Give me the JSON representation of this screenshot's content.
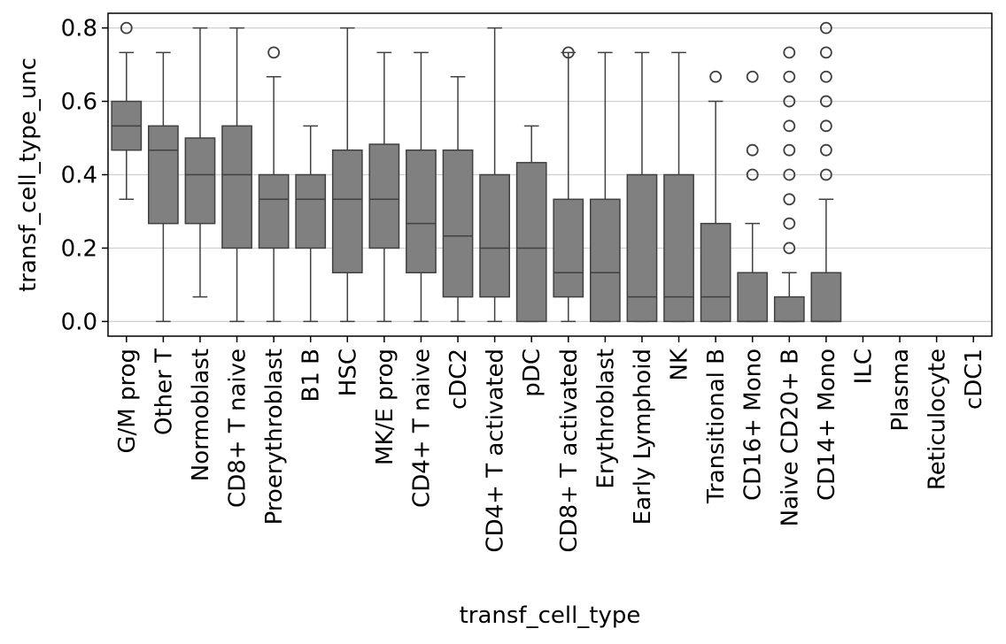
{
  "chart_data": {
    "type": "box",
    "xlabel": "transf_cell_type",
    "ylabel": "transf_cell_type_unc",
    "ylim": [
      -0.04,
      0.84
    ],
    "yticks": [
      0.0,
      0.2,
      0.4,
      0.6,
      0.8
    ],
    "ytick_labels": [
      "0.0",
      "0.2",
      "0.4",
      "0.6",
      "0.8"
    ],
    "grid": "horizontal",
    "box_color": "#808080",
    "line_color": "#404040",
    "categories": [
      "G/M prog",
      "Other T",
      "Normoblast",
      "CD8+ T naive",
      "Proerythroblast",
      "B1 B",
      "HSC",
      "MK/E prog",
      "CD4+ T naive",
      "cDC2",
      "CD4+ T activated",
      "pDC",
      "CD8+ T activated",
      "Erythroblast",
      "Early Lymphoid",
      "NK",
      "Transitional B",
      "CD16+ Mono",
      "Naive CD20+ B",
      "CD14+ Mono",
      "ILC",
      "Plasma",
      "Reticulocyte",
      "cDC1"
    ],
    "boxes": [
      {
        "whislo": 0.333,
        "q1": 0.467,
        "med": 0.533,
        "q3": 0.6,
        "whishi": 0.733,
        "fliers": [
          0.8
        ]
      },
      {
        "whislo": 0.0,
        "q1": 0.267,
        "med": 0.467,
        "q3": 0.533,
        "whishi": 0.733,
        "fliers": []
      },
      {
        "whislo": 0.067,
        "q1": 0.267,
        "med": 0.4,
        "q3": 0.5,
        "whishi": 0.8,
        "fliers": []
      },
      {
        "whislo": 0.0,
        "q1": 0.2,
        "med": 0.4,
        "q3": 0.533,
        "whishi": 0.8,
        "fliers": []
      },
      {
        "whislo": 0.0,
        "q1": 0.2,
        "med": 0.333,
        "q3": 0.4,
        "whishi": 0.667,
        "fliers": [
          0.733
        ]
      },
      {
        "whislo": 0.0,
        "q1": 0.2,
        "med": 0.333,
        "q3": 0.4,
        "whishi": 0.533,
        "fliers": []
      },
      {
        "whislo": 0.0,
        "q1": 0.133,
        "med": 0.333,
        "q3": 0.467,
        "whishi": 0.8,
        "fliers": []
      },
      {
        "whislo": 0.0,
        "q1": 0.2,
        "med": 0.333,
        "q3": 0.483,
        "whishi": 0.733,
        "fliers": []
      },
      {
        "whislo": 0.0,
        "q1": 0.133,
        "med": 0.267,
        "q3": 0.467,
        "whishi": 0.733,
        "fliers": []
      },
      {
        "whislo": 0.0,
        "q1": 0.067,
        "med": 0.233,
        "q3": 0.467,
        "whishi": 0.667,
        "fliers": []
      },
      {
        "whislo": 0.0,
        "q1": 0.067,
        "med": 0.2,
        "q3": 0.4,
        "whishi": 0.8,
        "fliers": []
      },
      {
        "whislo": 0.0,
        "q1": 0.0,
        "med": 0.2,
        "q3": 0.433,
        "whishi": 0.533,
        "fliers": []
      },
      {
        "whislo": 0.0,
        "q1": 0.067,
        "med": 0.133,
        "q3": 0.333,
        "whishi": 0.733,
        "fliers": [
          0.733
        ]
      },
      {
        "whislo": 0.0,
        "q1": 0.0,
        "med": 0.133,
        "q3": 0.333,
        "whishi": 0.733,
        "fliers": []
      },
      {
        "whislo": 0.0,
        "q1": 0.0,
        "med": 0.067,
        "q3": 0.4,
        "whishi": 0.733,
        "fliers": []
      },
      {
        "whislo": 0.0,
        "q1": 0.0,
        "med": 0.067,
        "q3": 0.4,
        "whishi": 0.733,
        "fliers": []
      },
      {
        "whislo": 0.0,
        "q1": 0.0,
        "med": 0.067,
        "q3": 0.267,
        "whishi": 0.6,
        "fliers": [
          0.667
        ]
      },
      {
        "whislo": 0.0,
        "q1": 0.0,
        "med": 0.0,
        "q3": 0.133,
        "whishi": 0.267,
        "fliers": [
          0.4,
          0.467,
          0.667
        ]
      },
      {
        "whislo": 0.0,
        "q1": 0.0,
        "med": 0.0,
        "q3": 0.067,
        "whishi": 0.133,
        "fliers": [
          0.2,
          0.267,
          0.333,
          0.4,
          0.467,
          0.533,
          0.6,
          0.667,
          0.733
        ]
      },
      {
        "whislo": 0.0,
        "q1": 0.0,
        "med": 0.0,
        "q3": 0.133,
        "whishi": 0.333,
        "fliers": [
          0.4,
          0.467,
          0.533,
          0.6,
          0.667,
          0.733,
          0.8
        ]
      },
      null,
      null,
      null,
      null
    ]
  }
}
